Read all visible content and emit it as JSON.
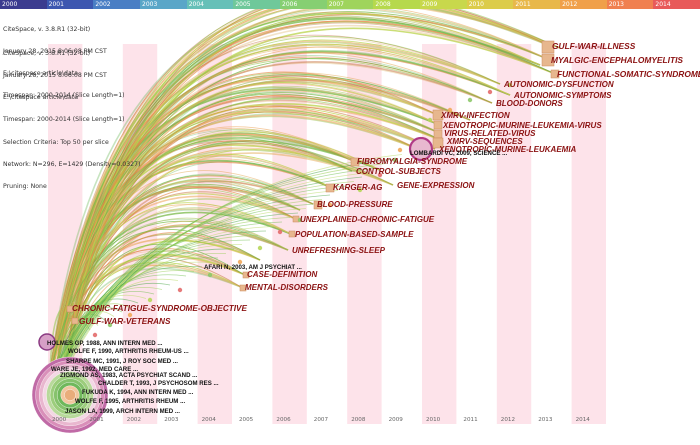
{
  "timeline": {
    "top_years": [
      "2000",
      "2001",
      "2002",
      "2003",
      "2004",
      "2005",
      "2006",
      "2007",
      "2008",
      "2009",
      "2010",
      "2011",
      "2012",
      "2013",
      "2014"
    ],
    "top_colors": [
      "#3b3b8f",
      "#3d57b0",
      "#4a7ec4",
      "#5aa6c8",
      "#66c0b8",
      "#6fc89a",
      "#86cf72",
      "#9fd45c",
      "#b6d94c",
      "#c8d84c",
      "#dccc4a",
      "#e8b84a",
      "#f0a04a",
      "#f08050",
      "#e85a5a"
    ],
    "bottom_years": [
      "2000",
      "2001",
      "2002",
      "2003",
      "2004",
      "2005",
      "2006",
      "2007",
      "2008",
      "2009",
      "2010",
      "2011",
      "2012",
      "2013",
      "2014"
    ]
  },
  "info_block_1": {
    "lines": [
      "CiteSpace, v. 3.8.R1 (32-bit)",
      "January 28, 2015 8:06:08 PM CST",
      "E:\\citespace article\\data",
      "Timespan: 2000-2014 (Slice Length=1)"
    ]
  },
  "info_block_2": {
    "lines": [
      "CiteSpace, v. 3.8.R1 (32-bit)",
      "January 28, 2015 8:06:08 PM CST",
      "E:\\citespace article\\data",
      "Timespan: 2000-2014 (Slice Length=1)",
      "Selection Criteria: Top 50 per slice",
      "Network: N=296, E=1429 (Density=0.0327)",
      "Pruning: None"
    ]
  },
  "keywords": [
    "GULF-WAR-ILLNESS",
    "MYALGIC-ENCEPHALOMYELITIS",
    "FUNCTIONAL-SOMATIC-SYNDROMES",
    "AUTONOMIC-DYSFUNCTION",
    "AUTONOMIC-SYMPTOMS",
    "BLOOD-DONORS",
    "XMRV-INFECTION",
    "XENOTROPIC-MURINE-LEUKEMIA-VIRUS",
    "VIRUS-RELATED-VIRUS",
    "XMRV-SEQUENCES",
    "XENOTROPIC-MURINE-LEUKAEMIA",
    "FIBROMYALGIA-SYNDROME",
    "CONTROL-SUBJECTS",
    "GENE-EXPRESSION",
    "KARGER-AG",
    "BLOOD-PRESSURE",
    "UNEXPLAINED-CHRONIC-FATIGUE",
    "POPULATION-BASED-SAMPLE",
    "UNREFRESHING-SLEEP",
    "CASE-DEFINITION",
    "MENTAL-DISORDERS",
    "CHRONIC-FATIGUE-SYNDROME-OBJECTIVE",
    "GULF-WAR-VETERANS"
  ],
  "references": [
    "LOMBARDI VC, 2009, SCIENCE ...",
    "AFARI N, 2003, AM J PSYCHIAT ...",
    "HOLMES GP, 1988, ANN INTERN MED ...",
    "WOLFE F, 1990, ARTHRITIS RHEUM-US ...",
    "SHARPE MC, 1991, J ROY SOC MED ...",
    "WARE JE, 1992, MED CARE ...",
    "ZIGMOND AS, 1983, ACTA PSYCHIAT SCAND ...",
    "CHALDER T, 1993, J PSYCHOSOM RES ...",
    "FUKUDA K, 1994, ANN INTERN MED ...",
    "WOLFE F, 1995, ARTHRITIS RHEUM ...",
    "JASON LA, 1999, ARCH INTERN MED ..."
  ]
}
